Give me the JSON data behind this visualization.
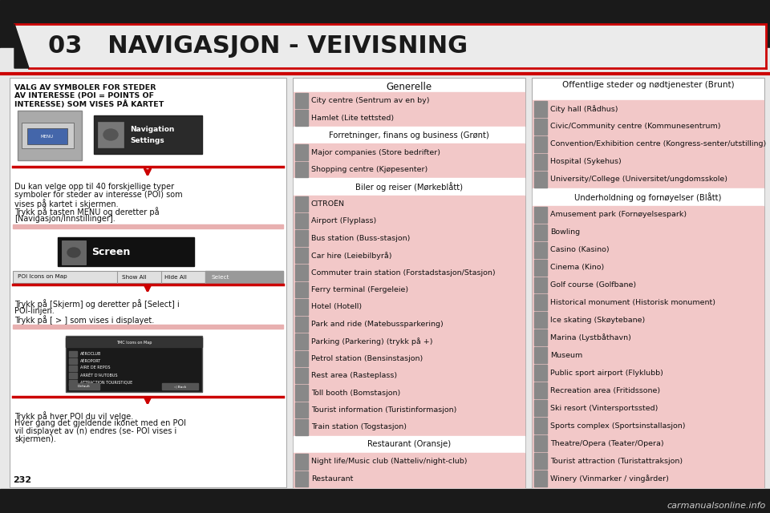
{
  "bg_color": "#f0f0f0",
  "header_text": "03   NAVIGASJON - VEIVISNING",
  "red_color": "#cc0000",
  "left_title_lines": [
    "VALG AV SYMBOLER FOR STEDER",
    "AV INTERESSE (POI = POINTS OF",
    "INTERESSE) SOM VISES PÅ KARTET"
  ],
  "left_body1": [
    "Du kan velge opp til 40 forskjellige typer",
    "symboler for steder av interesse (POI) som",
    "vises på kartet i skjermen.",
    "Trykk på tasten MENU og deretter på",
    "[Navigasjon/Innstillinger]."
  ],
  "left_body2": [
    "Trykk på [Skjerm] og deretter på [Select] i",
    "POI-linjen.",
    "Trykk på [ > ] som vises i displayet."
  ],
  "left_body3": [
    "Trykk på hver POI du vil velge.",
    "Hver gang det gjeldende ikonet med en POI",
    "vil displayet av (n) endres (se- POI vises i",
    "skjermen)."
  ],
  "mid_title": "Generelle",
  "pink_bg": "#f2c8c8",
  "white_bg": "#ffffff",
  "mid_items": [
    {
      "text": "City centre (Sentrum av en by)",
      "pink": true,
      "icon": true
    },
    {
      "text": "Hamlet (Lite tettsted)",
      "pink": true,
      "icon": true
    },
    {
      "text": "Forretninger, finans og business (Grønt)",
      "pink": false,
      "icon": false,
      "header": true
    },
    {
      "text": "Major companies (Store bedrifter)",
      "pink": true,
      "icon": true
    },
    {
      "text": "Shopping centre (Kjøpesenter)",
      "pink": true,
      "icon": true
    },
    {
      "text": "Biler og reiser (Mørkeblått)",
      "pink": false,
      "icon": false,
      "header": true
    },
    {
      "text": "CITROËN",
      "pink": true,
      "icon": true
    },
    {
      "text": "Airport (Flyplass)",
      "pink": true,
      "icon": true
    },
    {
      "text": "Bus station (Buss-stasjon)",
      "pink": true,
      "icon": true
    },
    {
      "text": "Car hire (Leiebilbyrå)",
      "pink": true,
      "icon": true
    },
    {
      "text": "Commuter train station (Forstadstasjon/Stasjon)",
      "pink": true,
      "icon": true
    },
    {
      "text": "Ferry terminal (Fergeleie)",
      "pink": true,
      "icon": true
    },
    {
      "text": "Hotel (Hotell)",
      "pink": true,
      "icon": true
    },
    {
      "text": "Park and ride (Matebussparkering)",
      "pink": true,
      "icon": true
    },
    {
      "text": "Parking (Parkering) (trykk på +)",
      "pink": true,
      "icon": true
    },
    {
      "text": "Petrol station (Bensinstasjon)",
      "pink": true,
      "icon": true
    },
    {
      "text": "Rest area (Rasteplass)",
      "pink": true,
      "icon": true
    },
    {
      "text": "Toll booth (Bomstasjon)",
      "pink": true,
      "icon": true
    },
    {
      "text": "Tourist information (Turistinformasjon)",
      "pink": true,
      "icon": true
    },
    {
      "text": "Train station (Togstasjon)",
      "pink": true,
      "icon": true
    },
    {
      "text": "Restaurant (Oransje)",
      "pink": false,
      "icon": false,
      "header": true
    },
    {
      "text": "Night life/Music club (Natteliv/night-club)",
      "pink": true,
      "icon": true
    },
    {
      "text": "Restaurant",
      "pink": true,
      "icon": true
    }
  ],
  "right_title": "Offentlige steder og nødtjenester (Brunt)",
  "right_items": [
    {
      "text": "City hall (Rådhus)",
      "pink": true,
      "icon": true
    },
    {
      "text": "Civic/Community centre (Kommunesentrum)",
      "pink": true,
      "icon": true
    },
    {
      "text": "Convention/Exhibition centre (Kongress-senter/utstilling)",
      "pink": true,
      "icon": true
    },
    {
      "text": "Hospital (Sykehus)",
      "pink": true,
      "icon": true
    },
    {
      "text": "University/College (Universitet/ungdomsskole)",
      "pink": true,
      "icon": true
    },
    {
      "text": "Underholdning og fornøyelser (Blått)",
      "pink": false,
      "icon": false,
      "header": true
    },
    {
      "text": "Amusement park (Fornøyelsespark)",
      "pink": true,
      "icon": true
    },
    {
      "text": "Bowling",
      "pink": true,
      "icon": true
    },
    {
      "text": "Casino (Kasino)",
      "pink": true,
      "icon": true
    },
    {
      "text": "Cinema (Kino)",
      "pink": true,
      "icon": true
    },
    {
      "text": "Golf course (Golfbane)",
      "pink": true,
      "icon": true
    },
    {
      "text": "Historical monument (Historisk monument)",
      "pink": true,
      "icon": true
    },
    {
      "text": "Ice skating (Skøytebane)",
      "pink": true,
      "icon": true
    },
    {
      "text": "Marina (Lystbåthavn)",
      "pink": true,
      "icon": true
    },
    {
      "text": "Museum",
      "pink": true,
      "icon": true
    },
    {
      "text": "Public sport airport (Flyklubb)",
      "pink": true,
      "icon": true
    },
    {
      "text": "Recreation area (Fritidssone)",
      "pink": true,
      "icon": true
    },
    {
      "text": "Ski resort (Vintersportssted)",
      "pink": true,
      "icon": true
    },
    {
      "text": "Sports complex (Sportsinstallasjon)",
      "pink": true,
      "icon": true
    },
    {
      "text": "Theatre/Opera (Teater/Opera)",
      "pink": true,
      "icon": true
    },
    {
      "text": "Tourist attraction (Turistattraksjon)",
      "pink": true,
      "icon": true
    },
    {
      "text": "Winery (Vinmarker / vingårder)",
      "pink": true,
      "icon": true
    }
  ],
  "page_number": "232",
  "website": "carmanualsonline.info"
}
